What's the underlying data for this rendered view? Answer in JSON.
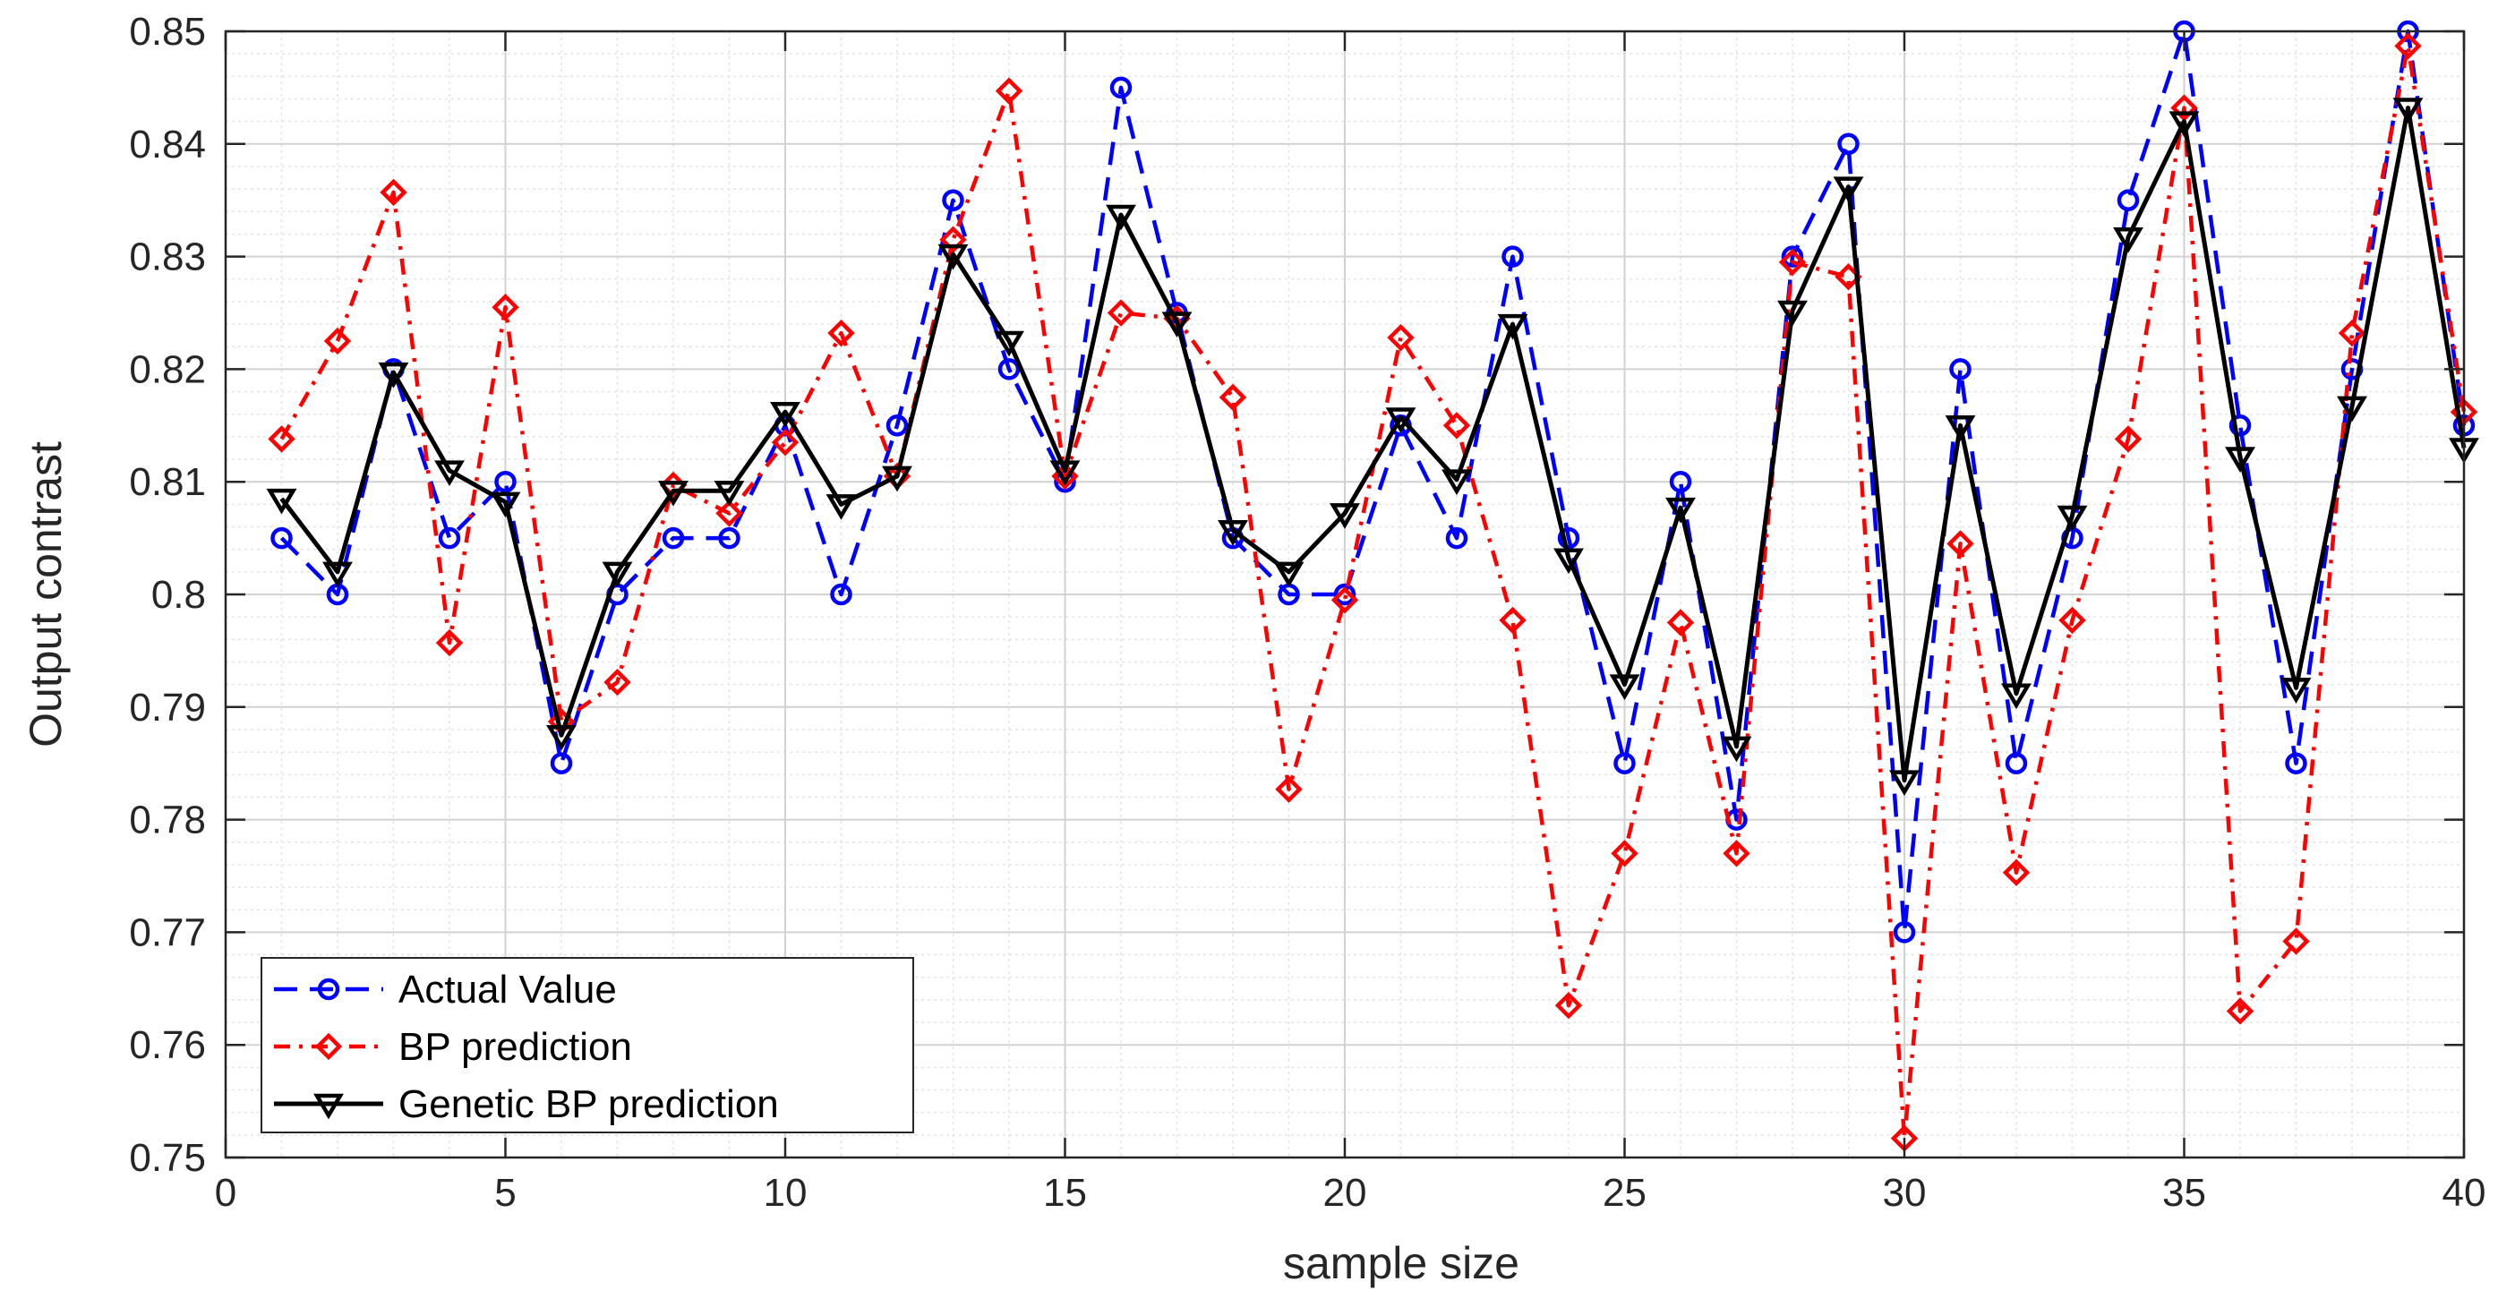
{
  "chart_data": {
    "type": "line",
    "title": "",
    "xlabel": "sample size",
    "ylabel": "Output contrast",
    "xlim": [
      0,
      40
    ],
    "ylim": [
      0.75,
      0.85
    ],
    "xticks": [
      0,
      5,
      10,
      15,
      20,
      25,
      30,
      35,
      40
    ],
    "xtick_labels": [
      "0",
      "5",
      "10",
      "15",
      "20",
      "25",
      "30",
      "35",
      "40"
    ],
    "yticks": [
      0.75,
      0.76,
      0.77,
      0.78,
      0.79,
      0.8,
      0.81,
      0.82,
      0.83,
      0.84,
      0.85
    ],
    "ytick_labels": [
      "0.75",
      "0.76",
      "0.77",
      "0.78",
      "0.79",
      "0.8",
      "0.81",
      "0.82",
      "0.83",
      "0.84",
      "0.85"
    ],
    "grid": true,
    "minor_grid": true,
    "legend_position": "bottom-left",
    "x": [
      1,
      2,
      3,
      4,
      5,
      6,
      7,
      8,
      9,
      10,
      11,
      12,
      13,
      14,
      15,
      16,
      17,
      18,
      19,
      20,
      21,
      22,
      23,
      24,
      25,
      26,
      27,
      28,
      29,
      30,
      31,
      32,
      33,
      34,
      35,
      36,
      37,
      38,
      39,
      40
    ],
    "series": [
      {
        "name": "Actual Value",
        "color": "#0000ff",
        "line_style": "dashed",
        "marker": "circle",
        "values": [
          0.805,
          0.8,
          0.82,
          0.805,
          0.81,
          0.785,
          0.8,
          0.805,
          0.805,
          0.815,
          0.8,
          0.815,
          0.835,
          0.82,
          0.81,
          0.845,
          0.825,
          0.805,
          0.8,
          0.8,
          0.815,
          0.805,
          0.83,
          0.805,
          0.785,
          0.81,
          0.78,
          0.83,
          0.84,
          0.77,
          0.82,
          0.785,
          0.805,
          0.835,
          0.85,
          0.815,
          0.785,
          0.82,
          0.85,
          0.815
        ]
      },
      {
        "name": "BP prediction",
        "color": "#ff0000",
        "line_style": "dashdot",
        "marker": "diamond",
        "values": [
          0.8138,
          0.8225,
          0.8357,
          0.7957,
          0.8255,
          0.7887,
          0.7922,
          0.8097,
          0.8072,
          0.8135,
          0.8232,
          0.8105,
          0.8315,
          0.8447,
          0.8105,
          0.825,
          0.8245,
          0.8175,
          0.7827,
          0.7995,
          0.8228,
          0.815,
          0.7977,
          0.7635,
          0.777,
          0.7975,
          0.777,
          0.8295,
          0.8282,
          0.7517,
          0.8045,
          0.7753,
          0.7977,
          0.8138,
          0.8432,
          0.763,
          0.7692,
          0.8232,
          0.8487,
          0.8162
        ]
      },
      {
        "name": "Genetic BP prediction",
        "color": "#000000",
        "line_style": "solid",
        "marker": "triangle-down",
        "values": [
          0.8085,
          0.802,
          0.8197,
          0.811,
          0.8082,
          0.7875,
          0.802,
          0.8092,
          0.8092,
          0.8162,
          0.808,
          0.8105,
          0.8302,
          0.8225,
          0.811,
          0.8337,
          0.8242,
          0.8057,
          0.802,
          0.8072,
          0.8157,
          0.8102,
          0.824,
          0.8032,
          0.792,
          0.8077,
          0.7865,
          0.8252,
          0.8362,
          0.7835,
          0.815,
          0.7912,
          0.807,
          0.8317,
          0.842,
          0.8122,
          0.7917,
          0.8167,
          0.8432,
          0.813
        ]
      }
    ]
  }
}
